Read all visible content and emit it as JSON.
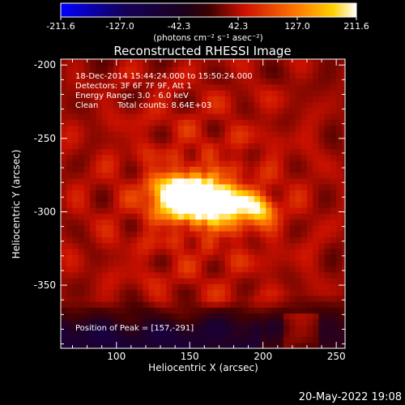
{
  "colorbar": {
    "ticks": [
      "-211.6",
      "-127.0",
      "-42.3",
      "42.3",
      "127.0",
      "211.6"
    ],
    "unit_label": "(photons cm⁻² s⁻¹ asec⁻²)",
    "range": [
      -211.6,
      211.6
    ],
    "colormap": [
      "#0000ff",
      "#140060",
      "#000000",
      "#ff0000",
      "#ffd000",
      "#ffffff"
    ]
  },
  "chart_data": {
    "type": "heatmap",
    "title": "Reconstructed RHESSI Image",
    "xlabel": "Heliocentric X (arcsec)",
    "ylabel": "Heliocentric Y (arcsec)",
    "xlim": [
      62,
      256
    ],
    "ylim": [
      -393,
      -196
    ],
    "xticks": [
      100,
      150,
      200,
      250
    ],
    "yticks": [
      -200,
      -250,
      -300,
      -350
    ],
    "annotations": [
      "18-Dec-2014 15:44:24.000 to 15:50:24.000",
      "Detectors: 3F 6F 7F 9F, Att 1",
      "Energy Range: 3.0 - 6.0 keV",
      "Clean",
      "Total counts: 8.64E+03"
    ],
    "peak_label": "Position of Peak = [157,-291]",
    "peak_position": [
      157,
      -291
    ],
    "sources": [
      {
        "x": 157,
        "y": -291,
        "value": 211.6
      },
      {
        "x": 140,
        "y": -289,
        "value": 190
      },
      {
        "x": 175,
        "y": -295,
        "value": 150
      },
      {
        "x": 197,
        "y": -298,
        "value": 130
      }
    ]
  },
  "footer": {
    "date": "20-May-2022 19:08"
  }
}
